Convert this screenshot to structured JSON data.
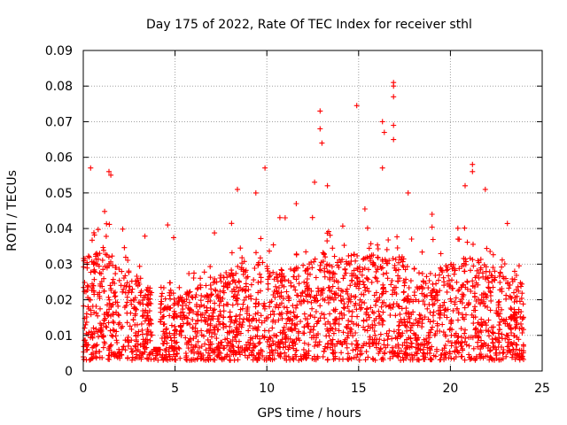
{
  "chart_data": {
    "type": "scatter",
    "title": "Day 175 of 2022, Rate Of TEC Index for receiver sthl",
    "xlabel": "GPS time / hours",
    "ylabel": "ROTI / TECUs",
    "xlim": [
      0,
      25
    ],
    "ylim": [
      0,
      0.09
    ],
    "xticks": [
      0,
      5,
      10,
      15,
      20,
      25
    ],
    "xtick_labels": [
      "0",
      "5",
      "10",
      "15",
      "20",
      "25"
    ],
    "yticks": [
      0,
      0.01,
      0.02,
      0.03,
      0.04,
      0.05,
      0.06,
      0.07,
      0.08,
      0.09
    ],
    "ytick_labels": [
      "0",
      "0.01",
      "0.02",
      "0.03",
      "0.04",
      "0.05",
      "0.06",
      "0.07",
      "0.08",
      "0.09"
    ],
    "grid": true,
    "marker": "+",
    "series_color": "#ff0000",
    "data_range_hours": [
      0,
      24
    ],
    "notable_points": [
      {
        "x": 0.4,
        "y": 0.057
      },
      {
        "x": 1.4,
        "y": 0.056
      },
      {
        "x": 1.5,
        "y": 0.055
      },
      {
        "x": 9.9,
        "y": 0.057
      },
      {
        "x": 12.9,
        "y": 0.073
      },
      {
        "x": 12.9,
        "y": 0.068
      },
      {
        "x": 13.0,
        "y": 0.064
      },
      {
        "x": 14.9,
        "y": 0.0745
      },
      {
        "x": 16.3,
        "y": 0.07
      },
      {
        "x": 16.4,
        "y": 0.067
      },
      {
        "x": 16.3,
        "y": 0.057
      },
      {
        "x": 16.9,
        "y": 0.081
      },
      {
        "x": 16.9,
        "y": 0.08
      },
      {
        "x": 16.9,
        "y": 0.077
      },
      {
        "x": 16.9,
        "y": 0.069
      },
      {
        "x": 16.9,
        "y": 0.065
      },
      {
        "x": 21.2,
        "y": 0.058
      },
      {
        "x": 21.2,
        "y": 0.056
      },
      {
        "x": 8.4,
        "y": 0.051
      },
      {
        "x": 9.4,
        "y": 0.05
      },
      {
        "x": 12.6,
        "y": 0.053
      },
      {
        "x": 13.3,
        "y": 0.052
      },
      {
        "x": 17.7,
        "y": 0.05
      },
      {
        "x": 20.8,
        "y": 0.052
      },
      {
        "x": 21.9,
        "y": 0.051
      },
      {
        "x": 4.6,
        "y": 0.041
      },
      {
        "x": 11.0,
        "y": 0.043
      },
      {
        "x": 11.6,
        "y": 0.047
      },
      {
        "x": 19.0,
        "y": 0.044
      },
      {
        "x": 23.5,
        "y": 0.028
      }
    ],
    "activity_profile": [
      {
        "hour": 0,
        "level": 0.018
      },
      {
        "hour": 1,
        "level": 0.02
      },
      {
        "hour": 2,
        "level": 0.016
      },
      {
        "hour": 3,
        "level": 0.015
      },
      {
        "hour": 4,
        "level": 0.011
      },
      {
        "hour": 5,
        "level": 0.012
      },
      {
        "hour": 6,
        "level": 0.013
      },
      {
        "hour": 7,
        "level": 0.014
      },
      {
        "hour": 8,
        "level": 0.016
      },
      {
        "hour": 9,
        "level": 0.018
      },
      {
        "hour": 10,
        "level": 0.017
      },
      {
        "hour": 11,
        "level": 0.016
      },
      {
        "hour": 12,
        "level": 0.017
      },
      {
        "hour": 13,
        "level": 0.019
      },
      {
        "hour": 14,
        "level": 0.018
      },
      {
        "hour": 15,
        "level": 0.019
      },
      {
        "hour": 16,
        "level": 0.02
      },
      {
        "hour": 17,
        "level": 0.019
      },
      {
        "hour": 18,
        "level": 0.017
      },
      {
        "hour": 19,
        "level": 0.016
      },
      {
        "hour": 20,
        "level": 0.017
      },
      {
        "hour": 21,
        "level": 0.019
      },
      {
        "hour": 22,
        "level": 0.017
      },
      {
        "hour": 23,
        "level": 0.015
      },
      {
        "hour": 24,
        "level": 0.014
      }
    ]
  }
}
